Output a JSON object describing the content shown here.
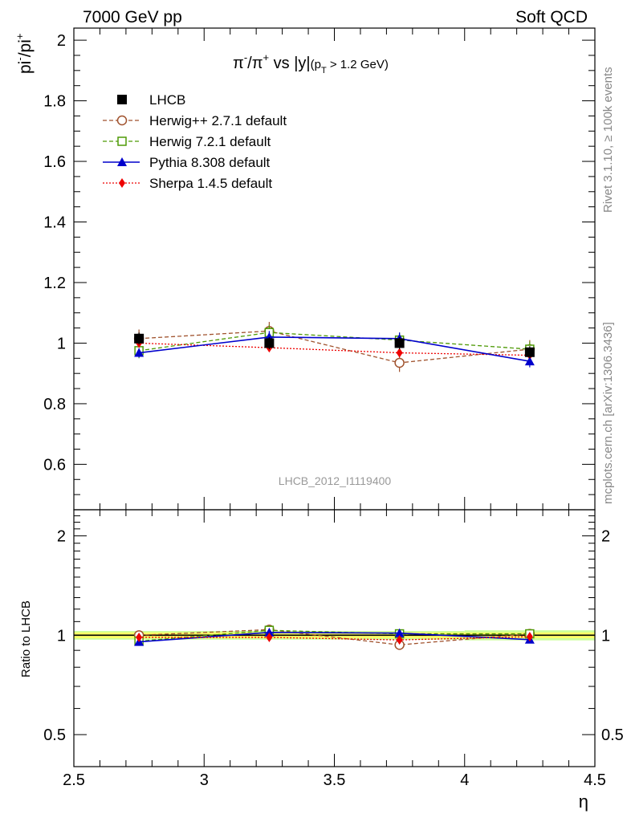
{
  "header": {
    "left": "7000 GeV pp",
    "right": "Soft QCD"
  },
  "side_labels": {
    "rivet": "Rivet 3.1.10, ≥ 100k events",
    "mcplots": "mcplots.cern.ch [arXiv:1306.3436]"
  },
  "watermark": "LHCB_2012_I1119400",
  "chart_data": [
    {
      "type": "line",
      "title": "π⁻/π⁺ vs |y|(p_T > 1.2 GeV)",
      "title_parts": {
        "main": "π",
        "sup1": "-",
        "slash": "/π",
        "sup2": "+",
        "vs": " vs |y|",
        "paren_open": "(p",
        "sub": "T",
        "paren_close": " > 1.2 GeV)"
      },
      "ylabel": "pi⁻/pi⁺",
      "ylabel_parts": {
        "a": "pi",
        "sup1": "-",
        "b": "/pi",
        "sup2": "+"
      },
      "xlabel": "",
      "xlim": [
        2.5,
        4.5
      ],
      "ylim": [
        0.45,
        2.04
      ],
      "yticks": [
        0.6,
        0.8,
        1.0,
        1.2,
        1.4,
        1.6,
        1.8,
        2.0
      ],
      "ytick_labels": [
        "0.6",
        "0.8",
        "1",
        "1.2",
        "1.4",
        "1.6",
        "1.8",
        "2"
      ],
      "legend_position": "top-left",
      "x": [
        2.75,
        3.25,
        3.75,
        4.25
      ],
      "series": [
        {
          "name": "LHCB",
          "color": "#000000",
          "marker": "square-filled",
          "line": "none",
          "values": [
            1.015,
            1.0,
            1.0,
            0.97
          ],
          "errors": [
            0.02,
            0.02,
            0.02,
            0.02
          ]
        },
        {
          "name": "Herwig++ 2.7.1 default",
          "color": "#a0522d",
          "marker": "circle-open",
          "line": "dashed",
          "values": [
            1.015,
            1.04,
            0.935,
            0.98
          ],
          "errors": [
            0.03,
            0.03,
            0.03,
            0.03
          ]
        },
        {
          "name": "Herwig 7.2.1 default",
          "color": "#4e9a06",
          "marker": "square-open",
          "line": "dashed",
          "values": [
            0.975,
            1.035,
            1.01,
            0.98
          ],
          "errors": [
            0.025,
            0.025,
            0.025,
            0.025
          ]
        },
        {
          "name": "Pythia 8.308 default",
          "color": "#0000cc",
          "marker": "triangle-filled",
          "line": "solid",
          "values": [
            0.968,
            1.02,
            1.015,
            0.94
          ],
          "errors": [
            0.015,
            0.02,
            0.02,
            0.02
          ]
        },
        {
          "name": "Sherpa 1.4.5 default",
          "color": "#ee0000",
          "marker": "diamond-filled",
          "line": "dotted",
          "values": [
            1.0,
            0.985,
            0.968,
            0.96
          ],
          "errors": [
            0.012,
            0.012,
            0.012,
            0.012
          ]
        }
      ]
    },
    {
      "type": "line",
      "ylabel": "Ratio to LHCB",
      "xlabel": "η",
      "xlim": [
        2.5,
        4.5
      ],
      "xticks": [
        2.5,
        3.0,
        3.5,
        4.0,
        4.5
      ],
      "xtick_labels": [
        "2.5",
        "3",
        "3.5",
        "4",
        "4.5"
      ],
      "ylim": [
        0.4,
        2.4
      ],
      "yscale": "log",
      "yticks": [
        0.5,
        1.0,
        2.0
      ],
      "ytick_labels": [
        "0.5",
        "1",
        "2"
      ],
      "x": [
        2.75,
        3.25,
        3.75,
        4.25
      ],
      "band": {
        "inner_color": "#ffff66",
        "outer_color": "#ccff99",
        "inner": [
          0.02,
          0.02,
          0.02,
          0.02
        ],
        "outer": [
          0.03,
          0.03,
          0.03,
          0.035
        ]
      },
      "series": [
        {
          "name": "Herwig++ 2.7.1 default",
          "color": "#a0522d",
          "marker": "circle-open",
          "line": "dashed",
          "values": [
            1.0,
            1.04,
            0.935,
            1.01
          ]
        },
        {
          "name": "Herwig 7.2.1 default",
          "color": "#4e9a06",
          "marker": "square-open",
          "line": "dashed",
          "values": [
            0.96,
            1.035,
            1.01,
            1.01
          ]
        },
        {
          "name": "Pythia 8.308 default",
          "color": "#0000cc",
          "marker": "triangle-filled",
          "line": "solid",
          "values": [
            0.955,
            1.02,
            1.015,
            0.97
          ]
        },
        {
          "name": "Sherpa 1.4.5 default",
          "color": "#ee0000",
          "marker": "diamond-filled",
          "line": "dotted",
          "values": [
            0.985,
            0.985,
            0.968,
            0.99
          ]
        }
      ]
    }
  ]
}
